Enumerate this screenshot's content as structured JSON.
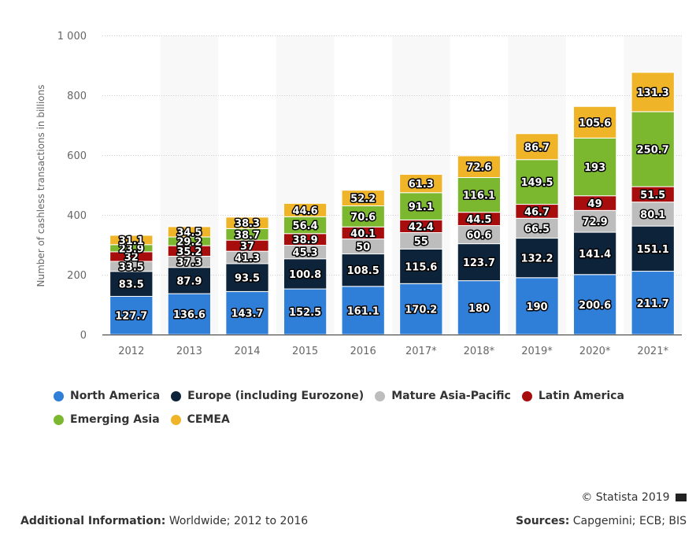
{
  "chart_data": {
    "type": "bar",
    "stacked": true,
    "title": "",
    "xlabel": "",
    "ylabel": "Number of cashless transactions in billions",
    "ylim": [
      0,
      1000
    ],
    "yticks": [
      0,
      200,
      400,
      600,
      800,
      1000
    ],
    "ytick_labels": [
      "0",
      "200",
      "400",
      "600",
      "800",
      "1 000"
    ],
    "grid": true,
    "legend_position": "bottom",
    "categories": [
      "2012",
      "2013",
      "2014",
      "2015",
      "2016",
      "2017*",
      "2018*",
      "2019*",
      "2020*",
      "2021*"
    ],
    "series": [
      {
        "name": "North America",
        "color": "#2f7ed8",
        "values": [
          127.7,
          136.6,
          143.7,
          152.5,
          161.1,
          170.2,
          180,
          190,
          200.6,
          211.7
        ]
      },
      {
        "name": "Europe (including Eurozone)",
        "color": "#0d233a",
        "values": [
          83.5,
          87.9,
          93.5,
          100.8,
          108.5,
          115.6,
          123.7,
          132.2,
          141.4,
          151.1
        ]
      },
      {
        "name": "Mature Asia-Pacific",
        "color": "#bdbdbd",
        "values": [
          33.5,
          37.3,
          41.3,
          45.3,
          50,
          55,
          60.6,
          66.5,
          72.9,
          80.1
        ]
      },
      {
        "name": "Latin America",
        "color": "#a80d0d",
        "values": [
          32,
          35.2,
          37,
          38.9,
          40.1,
          42.4,
          44.5,
          46.7,
          49,
          51.5
        ]
      },
      {
        "name": "Emerging Asia",
        "color": "#7cb82f",
        "values": [
          23.9,
          29.2,
          38.7,
          56.4,
          70.6,
          91.1,
          116.1,
          149.5,
          193,
          250.7
        ]
      },
      {
        "name": "CEMEA",
        "color": "#efb428",
        "values": [
          31.1,
          34.5,
          38.3,
          44.6,
          52.2,
          61.3,
          72.6,
          86.7,
          105.6,
          131.3
        ]
      }
    ]
  },
  "footer": {
    "copyright": "© Statista 2019",
    "additional_info_label": "Additional Information:",
    "additional_info_value": " Worldwide; 2012 to 2016",
    "sources_label": "Sources:",
    "sources_value": " Capgemini; ECB; BIS"
  }
}
